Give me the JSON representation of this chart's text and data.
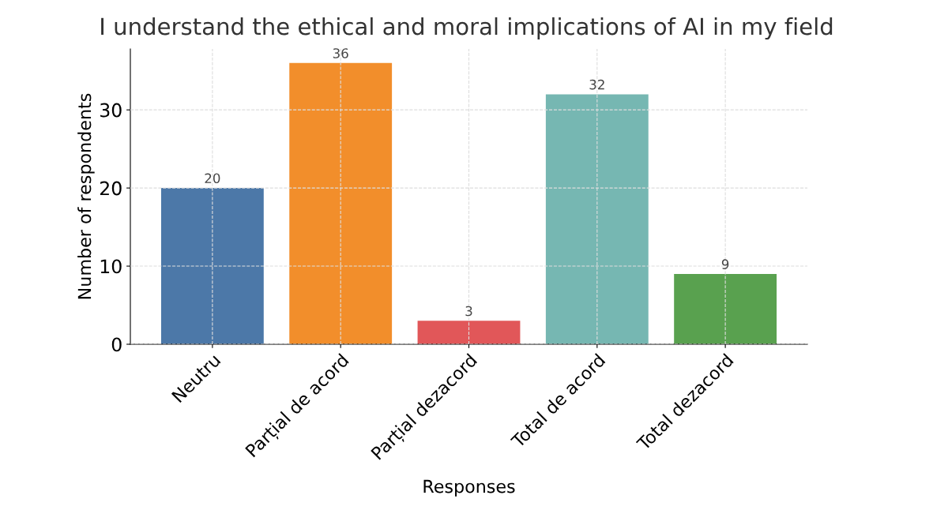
{
  "chart_data": {
    "type": "bar",
    "title": "I understand the ethical and moral implications of AI in my field",
    "xlabel": "Responses",
    "ylabel": "Number of respondents",
    "categories": [
      "Neutru",
      "Parțial de acord",
      "Parțial dezacord",
      "Total de acord",
      "Total dezacord"
    ],
    "values": [
      20,
      36,
      3,
      32,
      9
    ],
    "colors": [
      "#4c78a8",
      "#f28e2b",
      "#e15759",
      "#76b7b2",
      "#59a14f"
    ],
    "ylim": [
      0,
      37.8
    ],
    "yticks": [
      0,
      10,
      20,
      30
    ],
    "grid": true,
    "data_labels": true
  }
}
